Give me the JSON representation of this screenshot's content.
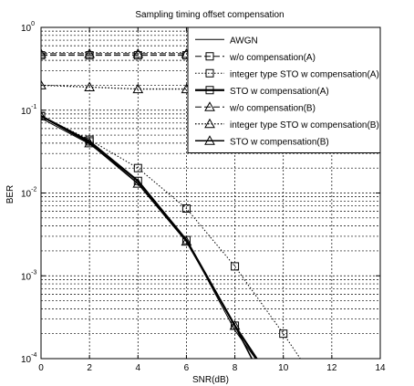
{
  "chart_data": {
    "type": "line",
    "title": "Sampling timing offset compensation",
    "xlabel": "SNR(dB)",
    "ylabel": "BER",
    "xlim": [
      0,
      14
    ],
    "ylim": [
      0.0001,
      1
    ],
    "yscale": "log",
    "grid": true,
    "legend_position": "top-right",
    "x_ticks": [
      "0",
      "2",
      "4",
      "6",
      "8",
      "10",
      "12",
      "14"
    ],
    "y_tick_base": "10",
    "y_tick_exponents": [
      "0",
      "-1",
      "-2",
      "-3",
      "-4"
    ],
    "series": [
      {
        "name": "AWGN",
        "line": "solid",
        "width": 1,
        "marker": "none",
        "x": [
          0,
          2,
          4,
          6,
          8,
          8.85
        ],
        "y": [
          0.08,
          0.039,
          0.014,
          0.0027,
          0.00022,
          0.0001
        ]
      },
      {
        "name": "w/o compensation(A)",
        "line": "dashed",
        "width": 1,
        "marker": "square",
        "x": [
          0,
          2,
          4,
          6,
          8,
          10,
          12,
          14
        ],
        "y": [
          0.46,
          0.46,
          0.46,
          0.46,
          0.46,
          0.46,
          0.46,
          0.46
        ]
      },
      {
        "name": "integer type STO w compensation(A)",
        "line": "dotted",
        "width": 1,
        "marker": "square",
        "x": [
          0,
          2,
          4,
          6,
          8,
          10,
          10.7
        ],
        "y": [
          0.085,
          0.044,
          0.02,
          0.0065,
          0.0013,
          0.0002,
          0.0001
        ]
      },
      {
        "name": "STO w compensation(A)",
        "line": "solid",
        "width": 2.2,
        "marker": "square",
        "x": [
          0,
          2,
          4,
          6,
          8,
          8.9
        ],
        "y": [
          0.085,
          0.042,
          0.014,
          0.0027,
          0.00025,
          0.0001
        ]
      },
      {
        "name": "w/o compensation(B)",
        "line": "dashed",
        "width": 1,
        "marker": "triangle",
        "x": [
          0,
          2,
          4,
          6,
          8,
          10,
          12,
          14
        ],
        "y": [
          0.48,
          0.48,
          0.48,
          0.48,
          0.48,
          0.48,
          0.48,
          0.48
        ]
      },
      {
        "name": "integer type STO w compensation(B)",
        "line": "dotted",
        "width": 1.3,
        "marker": "triangle",
        "x": [
          0,
          2,
          4,
          6,
          8,
          10,
          12,
          14
        ],
        "y": [
          0.2,
          0.19,
          0.18,
          0.18,
          0.18,
          0.18,
          0.18,
          0.18
        ]
      },
      {
        "name": "STO w compensation(B)",
        "line": "solid",
        "width": 1.6,
        "marker": "triangle",
        "x": [
          0,
          2,
          4,
          6,
          8,
          8.7
        ],
        "y": [
          0.085,
          0.04,
          0.013,
          0.0026,
          0.00025,
          0.0001
        ]
      }
    ]
  }
}
